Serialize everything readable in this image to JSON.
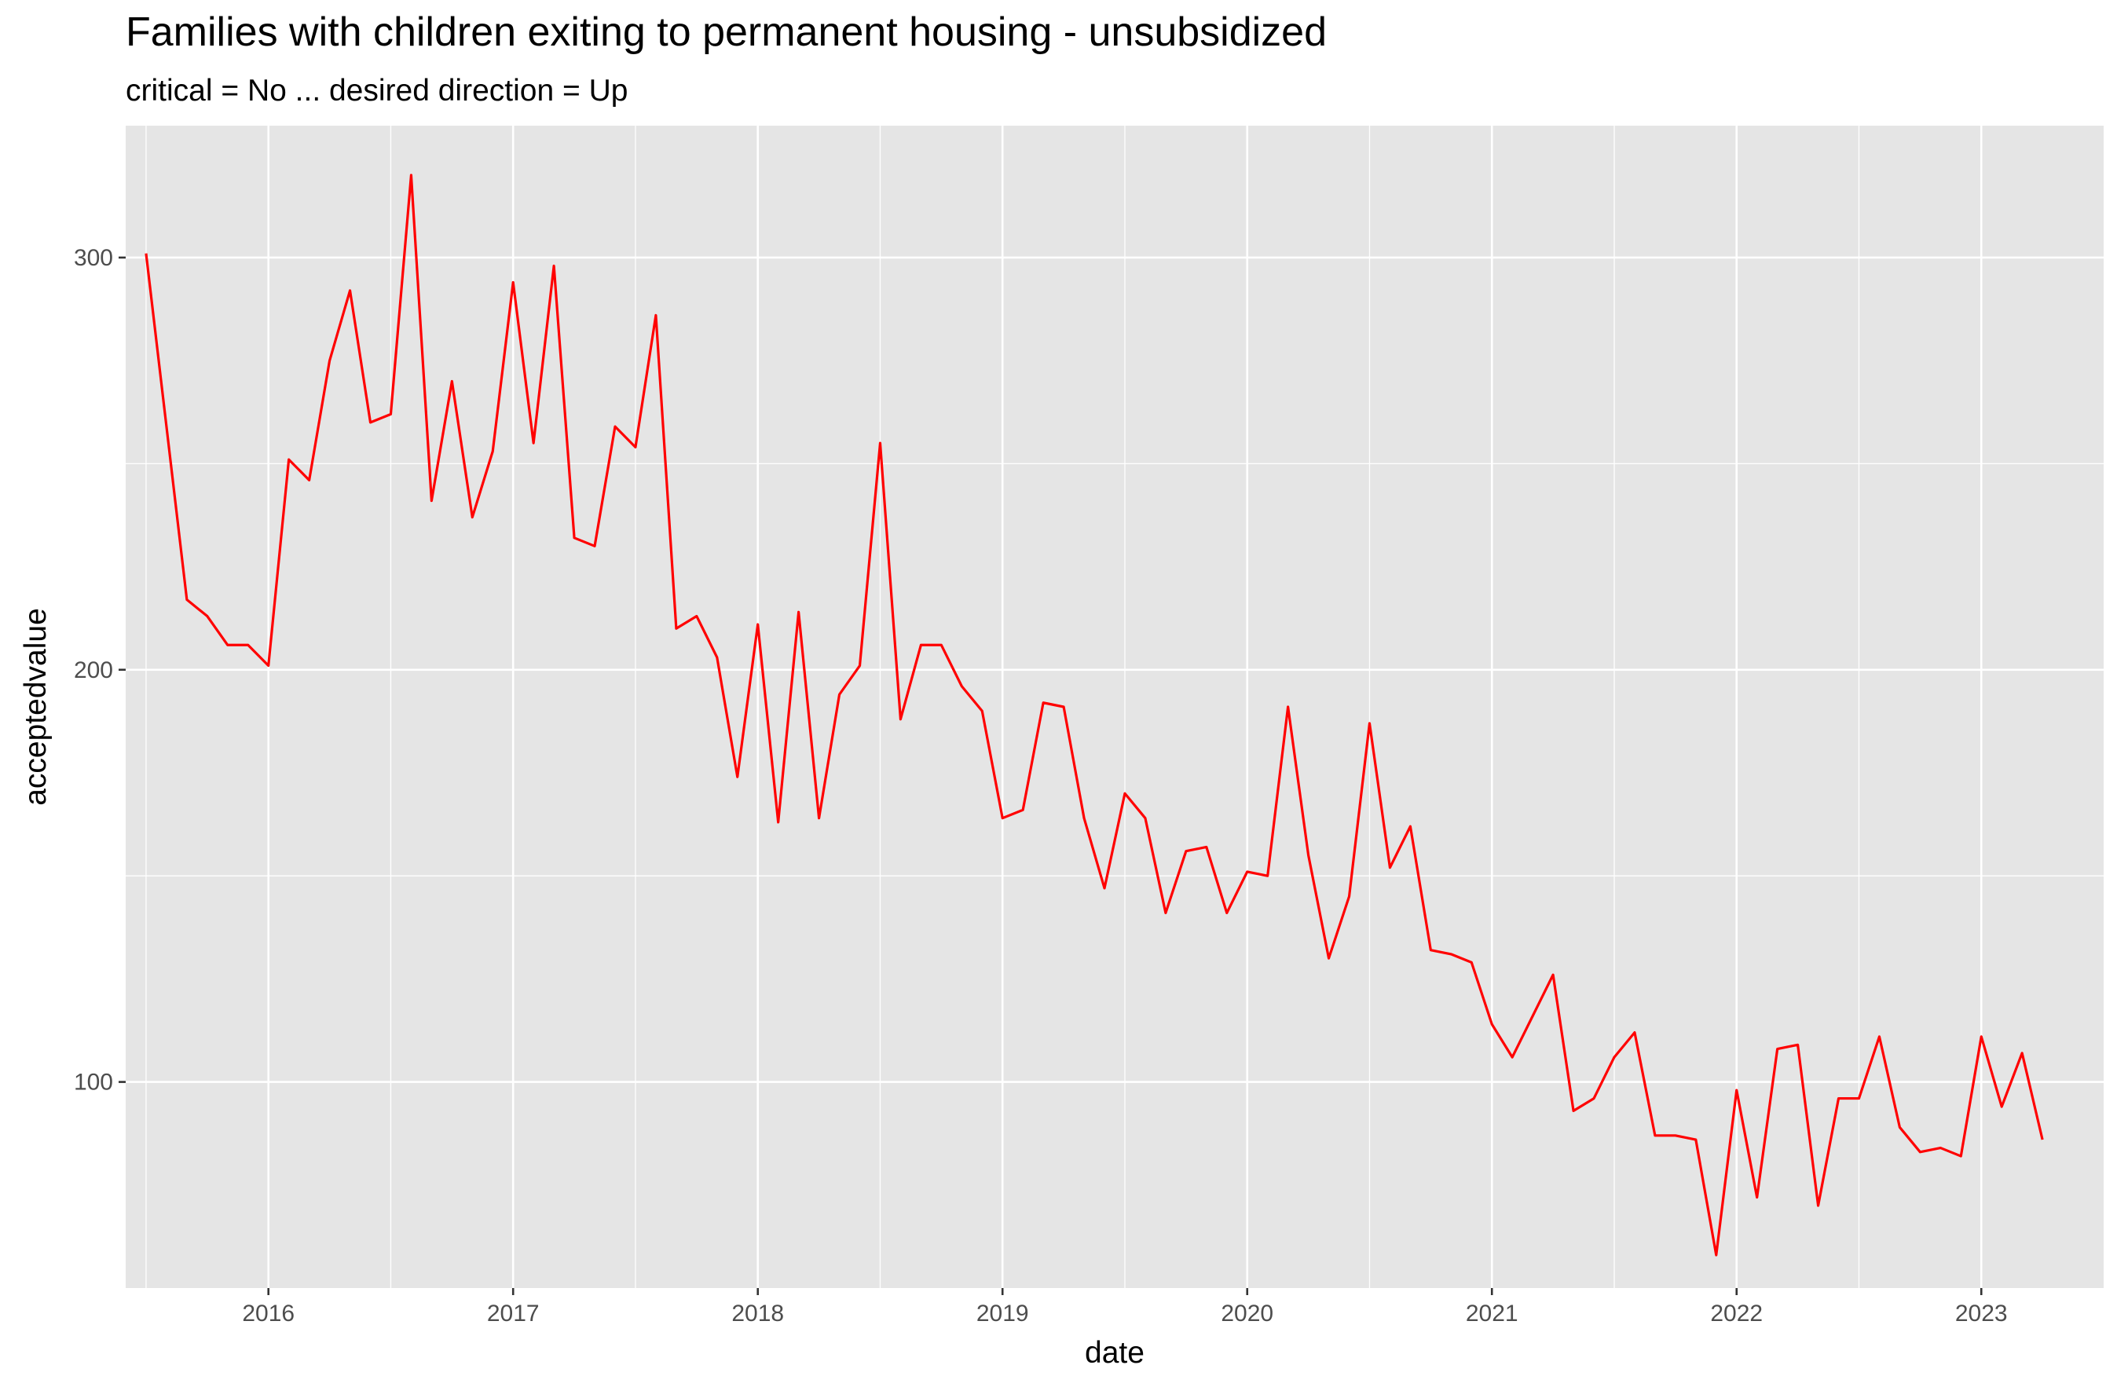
{
  "chart_data": {
    "type": "line",
    "title": "Families with children exiting to permanent housing - unsubsidized",
    "subtitle": "critical = No ... desired direction = Up",
    "xlabel": "date",
    "ylabel": "acceptedvalue",
    "x_ticks": [
      "2016",
      "2017",
      "2018",
      "2019",
      "2020",
      "2021",
      "2022",
      "2023"
    ],
    "y_ticks": [
      100,
      200,
      300
    ],
    "xlim": [
      "2015-06-01",
      "2023-07-01"
    ],
    "ylim": [
      50,
      332
    ],
    "grid": true,
    "panel_background": "#e5e5e5",
    "grid_color": "#ffffff",
    "series": [
      {
        "color": "#ff0000",
        "x": [
          "2015-07",
          "2015-08",
          "2015-09",
          "2015-10",
          "2015-11",
          "2015-12",
          "2016-01",
          "2016-02",
          "2016-03",
          "2016-04",
          "2016-05",
          "2016-06",
          "2016-07",
          "2016-08",
          "2016-09",
          "2016-10",
          "2016-11",
          "2016-12",
          "2017-01",
          "2017-02",
          "2017-03",
          "2017-04",
          "2017-05",
          "2017-06",
          "2017-07",
          "2017-08",
          "2017-09",
          "2017-10",
          "2017-11",
          "2017-12",
          "2018-01",
          "2018-02",
          "2018-03",
          "2018-04",
          "2018-05",
          "2018-06",
          "2018-07",
          "2018-08",
          "2018-09",
          "2018-10",
          "2018-11",
          "2018-12",
          "2019-01",
          "2019-02",
          "2019-03",
          "2019-04",
          "2019-05",
          "2019-06",
          "2019-07",
          "2019-08",
          "2019-09",
          "2019-10",
          "2019-11",
          "2019-12",
          "2020-01",
          "2020-02",
          "2020-03",
          "2020-04",
          "2020-05",
          "2020-06",
          "2020-07",
          "2020-08",
          "2020-09",
          "2020-10",
          "2020-11",
          "2020-12",
          "2021-01",
          "2021-02",
          "2021-03",
          "2021-04",
          "2021-05",
          "2021-06",
          "2021-07",
          "2021-08",
          "2021-09",
          "2021-10",
          "2021-11",
          "2021-12",
          "2022-01",
          "2022-02",
          "2022-03",
          "2022-04",
          "2022-05",
          "2022-06",
          "2022-07",
          "2022-08",
          "2022-09",
          "2022-10",
          "2022-11",
          "2022-12",
          "2023-01",
          "2023-02",
          "2023-03",
          "2023-04"
        ],
        "values": [
          301,
          259,
          217,
          213,
          206,
          206,
          201,
          251,
          246,
          275,
          292,
          260,
          262,
          320,
          241,
          270,
          237,
          253,
          294,
          255,
          298,
          232,
          230,
          259,
          254,
          286,
          210,
          213,
          203,
          174,
          211,
          163,
          214,
          164,
          194,
          201,
          255,
          188,
          206,
          206,
          196,
          190,
          164,
          166,
          192,
          191,
          164,
          147,
          170,
          164,
          141,
          156,
          157,
          141,
          151,
          150,
          191,
          155,
          130,
          145,
          187,
          152,
          162,
          132,
          131,
          129,
          114,
          106,
          116,
          126,
          93,
          96,
          106,
          112,
          87,
          87,
          86,
          58,
          98,
          72,
          108,
          109,
          70,
          96,
          96,
          111,
          89,
          83,
          84,
          82,
          111,
          94,
          107,
          86
        ]
      }
    ]
  }
}
